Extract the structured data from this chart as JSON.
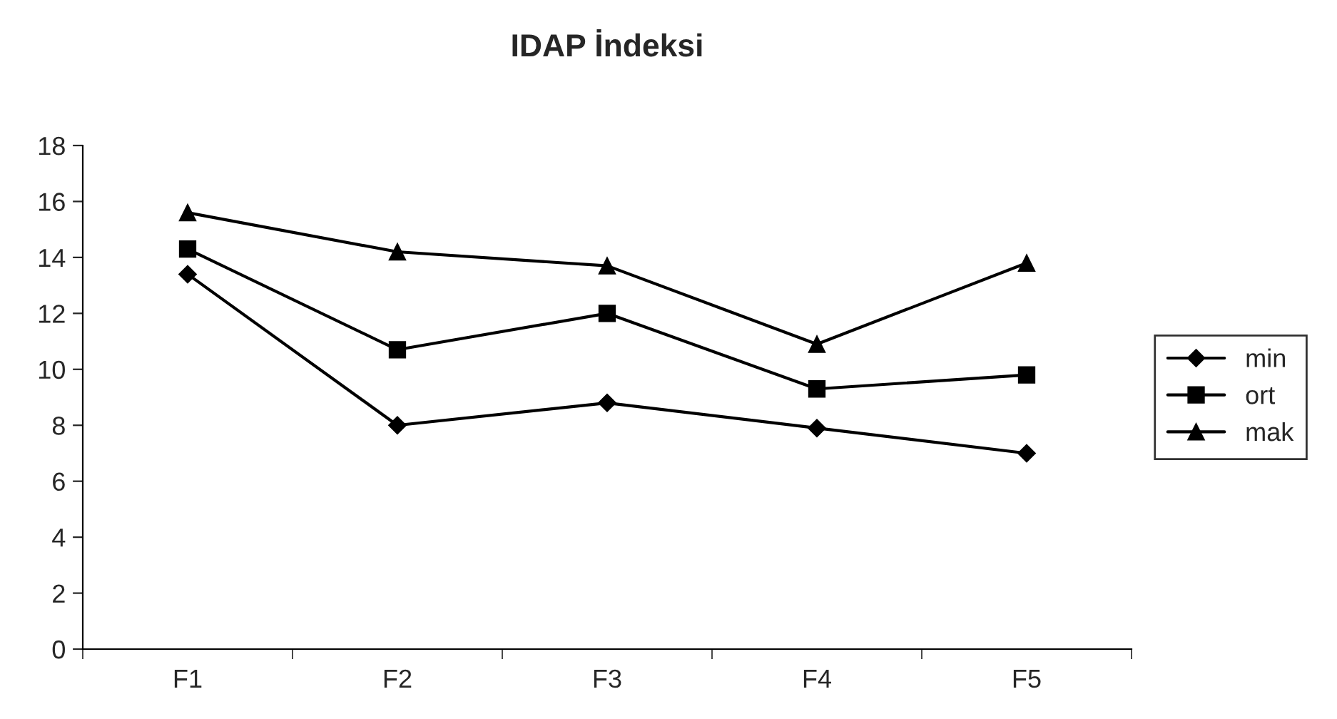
{
  "chart_data": {
    "type": "line",
    "title": "IDAP İndeksi",
    "categories": [
      "F1",
      "F2",
      "F3",
      "F4",
      "F5"
    ],
    "series": [
      {
        "name": "min",
        "color": "#000000",
        "marker": "diamond",
        "values": [
          13.4,
          8.0,
          8.8,
          7.9,
          7.0
        ]
      },
      {
        "name": "ort",
        "color": "#000000",
        "marker": "square",
        "values": [
          14.3,
          10.7,
          12.0,
          9.3,
          9.8
        ]
      },
      {
        "name": "mak",
        "color": "#000000",
        "marker": "triangle",
        "values": [
          15.6,
          14.2,
          13.7,
          10.9,
          13.8
        ]
      }
    ],
    "ylim": [
      0,
      18
    ],
    "yticks": [
      0,
      2,
      4,
      6,
      8,
      10,
      12,
      14,
      16,
      18
    ],
    "grid": false,
    "legend": "right"
  }
}
